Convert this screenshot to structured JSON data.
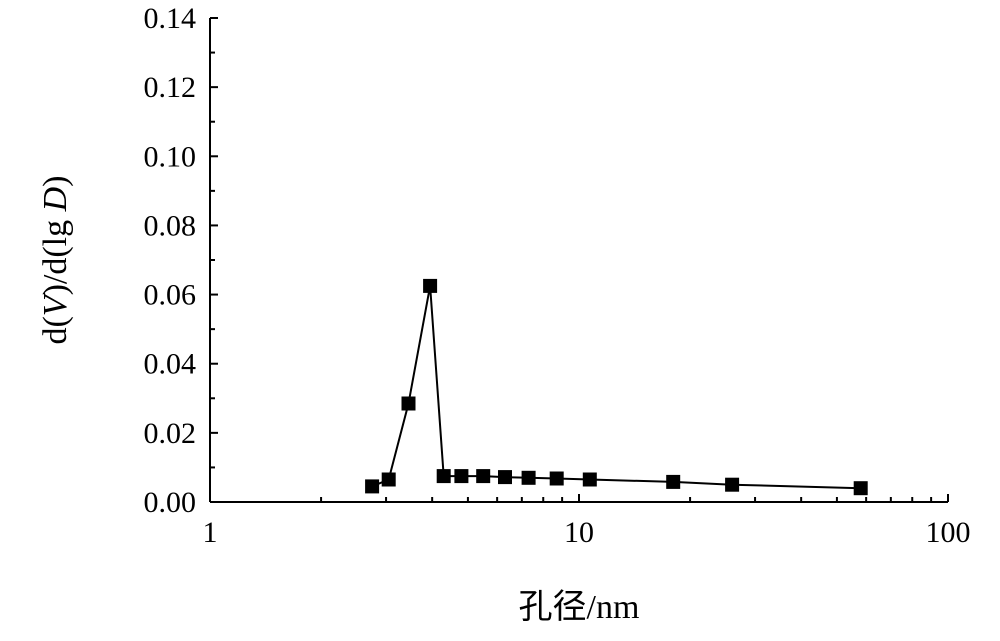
{
  "chart_data": {
    "type": "line",
    "xlabel": "孔径/nm",
    "ylabel_parts": {
      "p1": "d(",
      "p2": "V",
      "p3": ")/d(lg ",
      "p4": "D",
      "p5": ")"
    },
    "x_scale": "log",
    "xlim": [
      1,
      100
    ],
    "ylim": [
      0,
      0.14
    ],
    "x_ticks": [
      {
        "value": 1,
        "label": "1"
      },
      {
        "value": 10,
        "label": "10"
      },
      {
        "value": 100,
        "label": "100"
      }
    ],
    "y_ticks": [
      {
        "value": 0,
        "label": "0.00"
      },
      {
        "value": 0.02,
        "label": "0.02"
      },
      {
        "value": 0.04,
        "label": "0.04"
      },
      {
        "value": 0.06,
        "label": "0.06"
      },
      {
        "value": 0.08,
        "label": "0.08"
      },
      {
        "value": 0.1,
        "label": "0.10"
      },
      {
        "value": 0.12,
        "label": "0.12"
      },
      {
        "value": 0.14,
        "label": "0.14"
      }
    ],
    "grid": false,
    "legend": "none",
    "series": [
      {
        "color": "#000000",
        "marker": "square",
        "x": [
          2.75,
          3.05,
          3.45,
          3.95,
          4.3,
          4.8,
          5.5,
          6.3,
          7.3,
          8.7,
          10.7,
          18,
          26,
          58
        ],
        "y": [
          0.0045,
          0.0065,
          0.0285,
          0.0625,
          0.0075,
          0.0075,
          0.0075,
          0.0072,
          0.007,
          0.0068,
          0.0065,
          0.0058,
          0.005,
          0.004
        ]
      }
    ]
  }
}
